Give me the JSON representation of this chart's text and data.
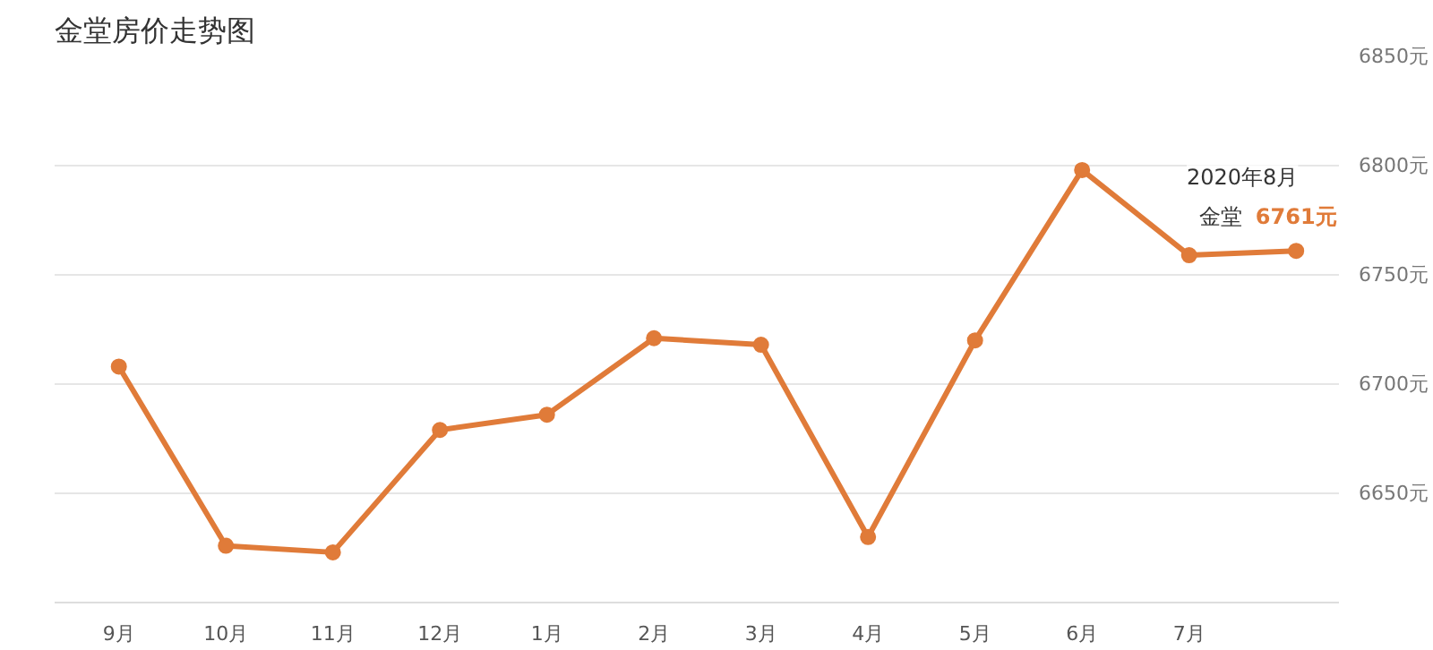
{
  "chart_data": {
    "type": "line",
    "title": "金堂房价走势图",
    "categories": [
      "9月",
      "10月",
      "11月",
      "12月",
      "1月",
      "2月",
      "3月",
      "4月",
      "5月",
      "6月",
      "7月",
      null
    ],
    "series": [
      {
        "name": "金堂",
        "color": "#e07b39",
        "values": [
          6708,
          6626,
          6623,
          6679,
          6686,
          6721,
          6718,
          6630,
          6720,
          6798,
          6759,
          6761
        ],
        "value_labels": [
          null,
          null,
          null,
          null,
          null,
          null,
          null,
          null,
          null,
          null,
          null,
          "6761元"
        ]
      }
    ],
    "ylim": [
      6600,
      6850
    ],
    "yticks": [
      {
        "value": 6600,
        "label": null
      },
      {
        "value": 6650,
        "label": "6650元"
      },
      {
        "value": 6700,
        "label": "6700元"
      },
      {
        "value": 6750,
        "label": "6750元"
      },
      {
        "value": 6800,
        "label": "6800元"
      },
      {
        "value": 6850,
        "label": "6850元"
      }
    ],
    "grid": "y",
    "marker": "circle",
    "line_style": "solid",
    "legend": false,
    "annotations": [
      "2020年8月"
    ]
  }
}
